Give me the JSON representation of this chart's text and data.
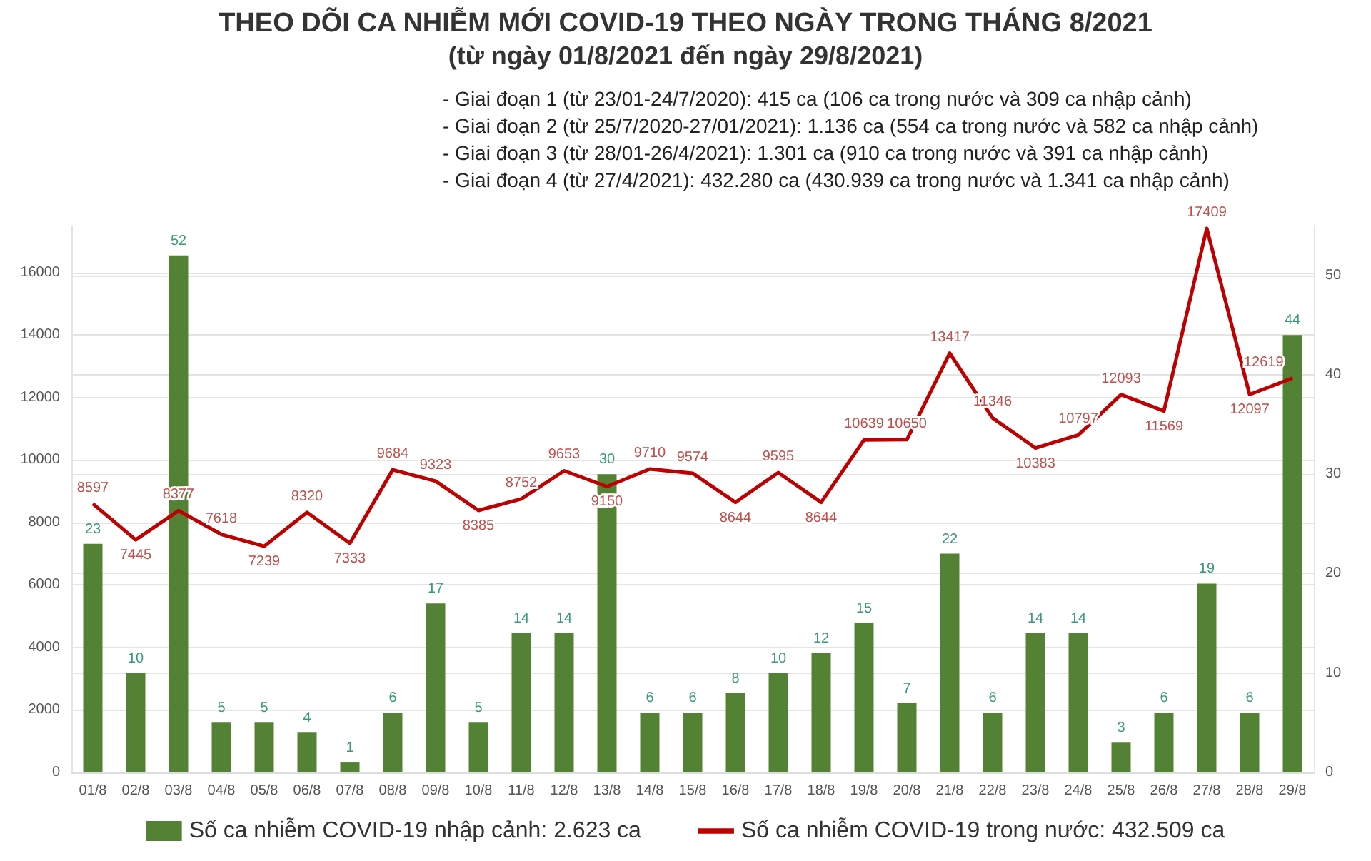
{
  "chart_data": {
    "type": "bar",
    "title": "THEO DÕI CA NHIỄM MỚI COVID-19 THEO NGÀY TRONG THÁNG 8/2021",
    "subtitle": "(từ ngày 01/8/2021 đến ngày 29/8/2021)",
    "annotations": [
      "- Giai đoạn 1 (từ 23/01-24/7/2020): 415 ca (106 ca trong nước và 309 ca nhập cảnh)",
      "- Giai đoạn 2 (từ 25/7/2020-27/01/2021): 1.136 ca (554 ca trong nước và 582 ca nhập cảnh)",
      "- Giai đoạn 3 (từ 28/01-26/4/2021): 1.301 ca (910 ca trong nước và 391 ca nhập cảnh)",
      "- Giai đoạn 4 (từ 27/4/2021): 432.280 ca (430.939 ca trong nước và 1.341 ca nhập cảnh)"
    ],
    "categories": [
      "01/8",
      "02/8",
      "03/8",
      "04/8",
      "05/8",
      "06/8",
      "07/8",
      "08/8",
      "09/8",
      "10/8",
      "11/8",
      "12/8",
      "13/8",
      "14/8",
      "15/8",
      "16/8",
      "17/8",
      "18/8",
      "19/8",
      "20/8",
      "21/8",
      "22/8",
      "23/8",
      "24/8",
      "25/8",
      "26/8",
      "27/8",
      "28/8",
      "29/8"
    ],
    "series": [
      {
        "name": "Số ca nhiễm COVID-19 nhập cảnh: 2.623 ca",
        "axis": "y2",
        "color": "#548235",
        "values": [
          23,
          10,
          52,
          5,
          5,
          4,
          1,
          6,
          17,
          5,
          14,
          14,
          30,
          6,
          6,
          8,
          10,
          12,
          15,
          7,
          22,
          6,
          14,
          14,
          3,
          6,
          19,
          6,
          44
        ]
      },
      {
        "name": "Số ca nhiễm COVID-19 trong nước: 432.509 ca",
        "type": "line",
        "color": "#c00000",
        "values": [
          8597,
          7445,
          8377,
          7618,
          7239,
          8320,
          7333,
          9684,
          9323,
          8385,
          8752,
          9653,
          9150,
          9710,
          9574,
          8644,
          9595,
          8644,
          10639,
          10650,
          13417,
          11346,
          10383,
          10797,
          12093,
          11569,
          17409,
          12097,
          12619
        ]
      }
    ],
    "ylim": [
      0,
      17500
    ],
    "yticks": [
      0,
      2000,
      4000,
      6000,
      8000,
      10000,
      12000,
      14000,
      16000
    ],
    "y2lim": [
      0,
      55
    ],
    "y2ticks": [
      0,
      10,
      20,
      30,
      40,
      50
    ],
    "data_labels": true,
    "grid": "y",
    "legend": "bottom",
    "marker": "none"
  }
}
